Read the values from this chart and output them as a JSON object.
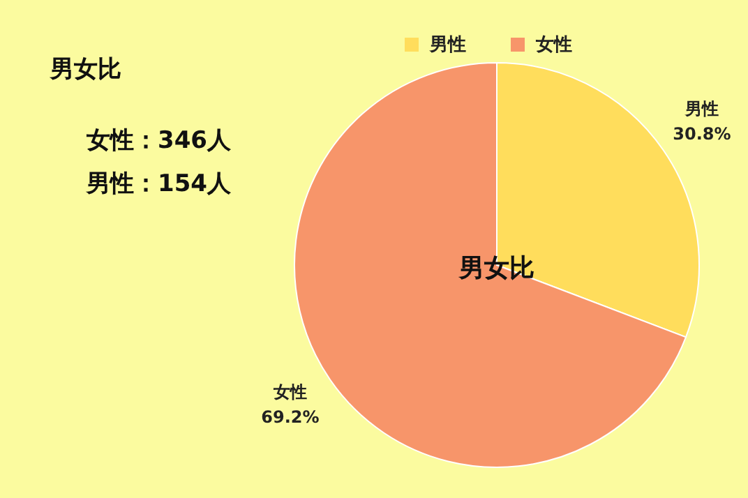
{
  "chart_data": {
    "type": "pie",
    "title": "男女比",
    "categories": [
      "男性",
      "女性"
    ],
    "values": [
      30.8,
      69.2
    ],
    "colors": [
      "#ffdd5c",
      "#f7956a"
    ],
    "value_labels": [
      "30.8%",
      "69.2%"
    ],
    "legend": "top",
    "annotations": [
      "女性：346人",
      "男性：154人",
      "男女比"
    ]
  }
}
